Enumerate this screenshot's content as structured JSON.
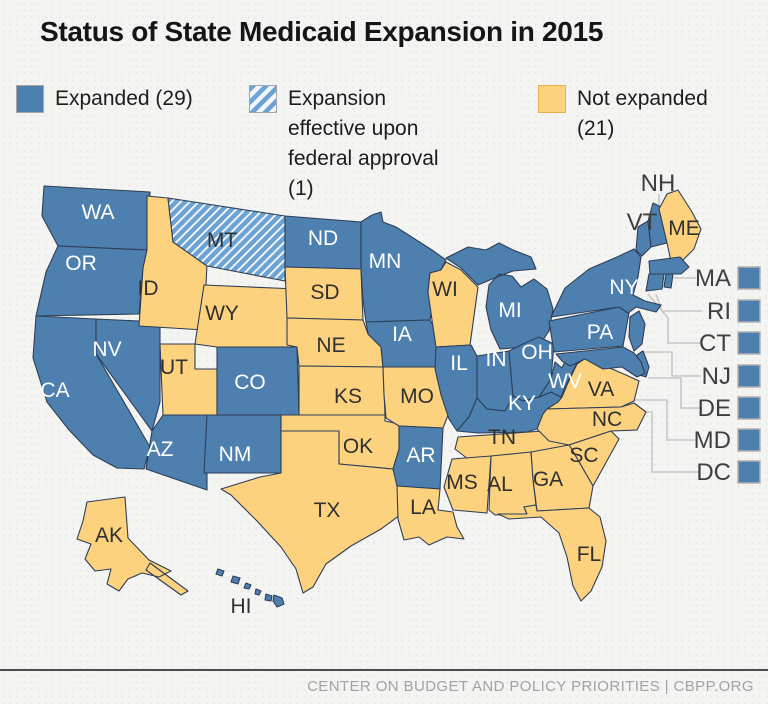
{
  "title": "Status of State Medicaid Expansion in 2015",
  "legend": {
    "items": [
      {
        "id": "expanded",
        "label": "Expanded (29)"
      },
      {
        "id": "pending",
        "label": "Expansion effective upon federal approval (1)"
      },
      {
        "id": "not_expanded",
        "label": "Not expanded (21)"
      }
    ]
  },
  "colors": {
    "expanded": "#4d80af",
    "not_expanded": "#fcd27e",
    "hatch_stripe": "#6ba3d6",
    "hatch_bg": "#f3f6f9",
    "state_border": "#2e3e56",
    "label_light": "#ffffff",
    "label_dark": "#303030",
    "outside_label": "#3f3f3f",
    "leader_line": "#c7c7c7",
    "callout_square_border": "#b0b0b0"
  },
  "map": {
    "states": [
      {
        "abbr": "WA",
        "status": "expanded"
      },
      {
        "abbr": "OR",
        "status": "expanded"
      },
      {
        "abbr": "CA",
        "status": "expanded"
      },
      {
        "abbr": "NV",
        "status": "expanded"
      },
      {
        "abbr": "ID",
        "status": "not_expanded"
      },
      {
        "abbr": "MT",
        "status": "pending"
      },
      {
        "abbr": "WY",
        "status": "not_expanded"
      },
      {
        "abbr": "UT",
        "status": "not_expanded"
      },
      {
        "abbr": "CO",
        "status": "expanded"
      },
      {
        "abbr": "AZ",
        "status": "expanded"
      },
      {
        "abbr": "NM",
        "status": "expanded"
      },
      {
        "abbr": "ND",
        "status": "expanded"
      },
      {
        "abbr": "SD",
        "status": "not_expanded"
      },
      {
        "abbr": "NE",
        "status": "not_expanded"
      },
      {
        "abbr": "KS",
        "status": "not_expanded"
      },
      {
        "abbr": "OK",
        "status": "not_expanded"
      },
      {
        "abbr": "TX",
        "status": "not_expanded"
      },
      {
        "abbr": "MN",
        "status": "expanded"
      },
      {
        "abbr": "IA",
        "status": "expanded"
      },
      {
        "abbr": "MO",
        "status": "not_expanded"
      },
      {
        "abbr": "AR",
        "status": "expanded"
      },
      {
        "abbr": "LA",
        "status": "not_expanded"
      },
      {
        "abbr": "WI",
        "status": "not_expanded"
      },
      {
        "abbr": "IL",
        "status": "expanded"
      },
      {
        "abbr": "MI",
        "status": "expanded"
      },
      {
        "abbr": "IN",
        "status": "expanded"
      },
      {
        "abbr": "OH",
        "status": "expanded"
      },
      {
        "abbr": "KY",
        "status": "expanded"
      },
      {
        "abbr": "TN",
        "status": "not_expanded"
      },
      {
        "abbr": "WV",
        "status": "expanded"
      },
      {
        "abbr": "VA",
        "status": "not_expanded"
      },
      {
        "abbr": "NC",
        "status": "not_expanded"
      },
      {
        "abbr": "SC",
        "status": "not_expanded"
      },
      {
        "abbr": "GA",
        "status": "not_expanded"
      },
      {
        "abbr": "AL",
        "status": "not_expanded"
      },
      {
        "abbr": "MS",
        "status": "not_expanded"
      },
      {
        "abbr": "FL",
        "status": "not_expanded"
      },
      {
        "abbr": "PA",
        "status": "expanded"
      },
      {
        "abbr": "NY",
        "status": "expanded"
      },
      {
        "abbr": "VT",
        "status": "expanded"
      },
      {
        "abbr": "NH",
        "status": "expanded"
      },
      {
        "abbr": "ME",
        "status": "not_expanded"
      },
      {
        "abbr": "MA",
        "status": "expanded"
      },
      {
        "abbr": "RI",
        "status": "expanded"
      },
      {
        "abbr": "CT",
        "status": "expanded"
      },
      {
        "abbr": "NJ",
        "status": "expanded"
      },
      {
        "abbr": "DE",
        "status": "expanded"
      },
      {
        "abbr": "MD",
        "status": "expanded"
      },
      {
        "abbr": "DC",
        "status": "expanded"
      },
      {
        "abbr": "AK",
        "status": "not_expanded"
      },
      {
        "abbr": "HI",
        "status": "expanded"
      }
    ]
  },
  "footer": {
    "text": "CENTER ON BUDGET AND POLICY PRIORITIES | CBPP.ORG"
  }
}
